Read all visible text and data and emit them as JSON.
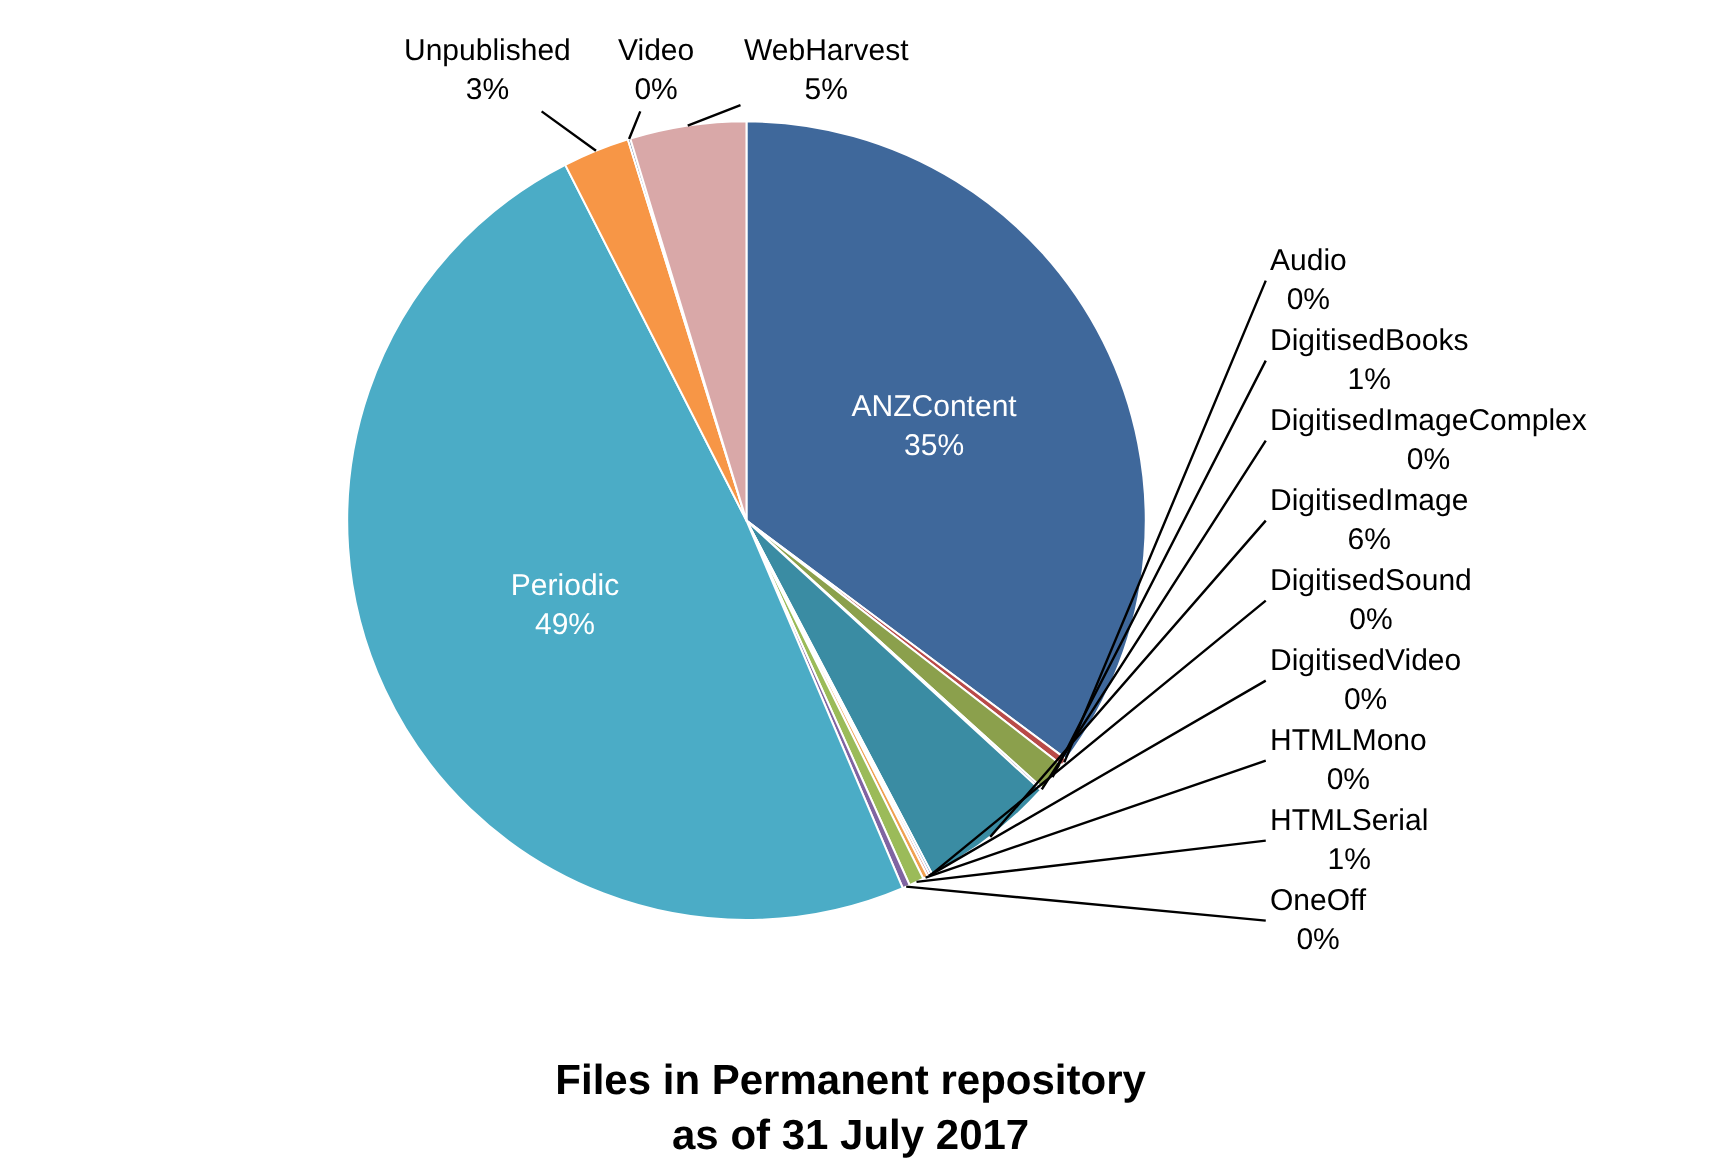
{
  "chart_data": {
    "type": "pie",
    "title": "Files in Permanent repository\nas of 31 July 2017",
    "categories": [
      "ANZContent",
      "Audio",
      "DigitisedBooks",
      "DigitisedImageComplex",
      "DigitisedImage",
      "DigitisedSound",
      "DigitisedVideo",
      "HTMLMono",
      "HTMLSerial",
      "OneOff",
      "Periodic",
      "Unpublished",
      "Video",
      "WebHarvest"
    ],
    "values": [
      35.2,
      0.3,
      1.2,
      0.1,
      5.5,
      0.1,
      0.1,
      0.2,
      0.6,
      0.3,
      48.9,
      2.7,
      0.1,
      4.7
    ],
    "value_labels": [
      "35%",
      "0%",
      "1%",
      "0%",
      "6%",
      "0%",
      "0%",
      "0%",
      "1%",
      "0%",
      "49%",
      "3%",
      "0%",
      "5%"
    ],
    "colors": [
      "#3f689b",
      "#b94a48",
      "#8ba04c",
      "#6d548f",
      "#3a8ca3",
      "#4f81bd",
      "#c0504d",
      "#f0a050",
      "#9bbb59",
      "#8064a2",
      "#4bacc6",
      "#f79646",
      "#2c4d75",
      "#d9a8a8"
    ],
    "legend": false
  }
}
